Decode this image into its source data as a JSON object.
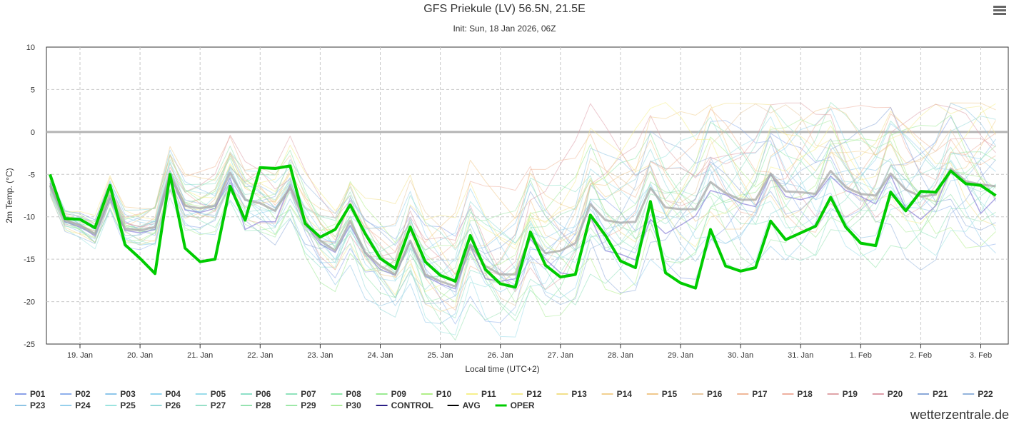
{
  "title": "GFS Priekule (LV) 56.5N, 21.5E",
  "subtitle": "Init: Sun, 18 Jan 2026, 06Z",
  "brand": "wetterzentrale.de",
  "menu_icon": "hamburger-menu-icon",
  "chart_data": {
    "type": "line",
    "title": "GFS Priekule (LV) 56.5N, 21.5E",
    "subtitle": "Init: Sun, 18 Jan 2026, 06Z",
    "xlabel": "Local time (UTC+2)",
    "ylabel": "2m Temp. (°C)",
    "ylim": [
      -25,
      10
    ],
    "yticks": [
      10,
      5,
      0,
      -5,
      -10,
      -15,
      -20,
      -25
    ],
    "xticks": [
      {
        "label": "19. Jan",
        "day": 1
      },
      {
        "label": "20. Jan",
        "day": 2
      },
      {
        "label": "21. Jan",
        "day": 3
      },
      {
        "label": "22. Jan",
        "day": 4
      },
      {
        "label": "23. Jan",
        "day": 5
      },
      {
        "label": "24. Jan",
        "day": 6
      },
      {
        "label": "25. Jan",
        "day": 7
      },
      {
        "label": "26. Jan",
        "day": 8
      },
      {
        "label": "27. Jan",
        "day": 9
      },
      {
        "label": "28. Jan",
        "day": 10
      },
      {
        "label": "29. Jan",
        "day": 11
      },
      {
        "label": "30. Jan",
        "day": 12
      },
      {
        "label": "31. Jan",
        "day": 13
      },
      {
        "label": "1. Feb",
        "day": 14
      },
      {
        "label": "2. Feb",
        "day": 15
      },
      {
        "label": "3. Feb",
        "day": 16
      }
    ],
    "x_start_day": 0.5,
    "step_hours": 6,
    "grid": true,
    "legend_position": "bottom",
    "zero_line": 0,
    "series": [
      {
        "name": "P01",
        "color": "#8aa0e8"
      },
      {
        "name": "P02",
        "color": "#8fb0ec"
      },
      {
        "name": "P03",
        "color": "#8ec6ea"
      },
      {
        "name": "P04",
        "color": "#92d4ee"
      },
      {
        "name": "P05",
        "color": "#9adcea"
      },
      {
        "name": "P06",
        "color": "#8ee0c8"
      },
      {
        "name": "P07",
        "color": "#90e2bc"
      },
      {
        "name": "P08",
        "color": "#8ee6a8"
      },
      {
        "name": "P09",
        "color": "#9aea92"
      },
      {
        "name": "P10",
        "color": "#b0ee88"
      },
      {
        "name": "P11",
        "color": "#f6f08c"
      },
      {
        "name": "P12",
        "color": "#f4ea90"
      },
      {
        "name": "P13",
        "color": "#f2e08a"
      },
      {
        "name": "P14",
        "color": "#f2d090"
      },
      {
        "name": "P15",
        "color": "#f0c88c"
      },
      {
        "name": "P16",
        "color": "#e8c8a0"
      },
      {
        "name": "P17",
        "color": "#f0b898"
      },
      {
        "name": "P18",
        "color": "#eeb0a0"
      },
      {
        "name": "P19",
        "color": "#e0a4a8"
      },
      {
        "name": "P20",
        "color": "#dc9ca8"
      },
      {
        "name": "P21",
        "color": "#8aa8d8"
      },
      {
        "name": "P22",
        "color": "#94b4dc"
      },
      {
        "name": "P23",
        "color": "#8ec4e4"
      },
      {
        "name": "P24",
        "color": "#96d0ec"
      },
      {
        "name": "P25",
        "color": "#9ce4e0"
      },
      {
        "name": "P26",
        "color": "#94d8d8"
      },
      {
        "name": "P27",
        "color": "#98e0c8"
      },
      {
        "name": "P28",
        "color": "#96e2b0"
      },
      {
        "name": "P29",
        "color": "#9ee8a8"
      },
      {
        "name": "P30",
        "color": "#aeec9c"
      },
      {
        "name": "CONTROL",
        "color": "#2b1f86"
      },
      {
        "name": "AVG",
        "color": "#111111",
        "values": [
          -6.3,
          -10.4,
          -11.0,
          -12.0,
          -7.5,
          -11.4,
          -11.6,
          -11.2,
          -5.0,
          -8.7,
          -9.0,
          -8.7,
          -4.8,
          -8.0,
          -8.4,
          -9.3,
          -6.5,
          -10.5,
          -12.8,
          -14.0,
          -10.5,
          -14.2,
          -15.8,
          -16.8,
          -12.8,
          -16.8,
          -17.6,
          -18.2,
          -13.3,
          -15.8,
          -16.8,
          -16.8,
          -12.2,
          -14.3,
          -14.0,
          -13.1,
          -8.5,
          -10.4,
          -10.7,
          -10.6,
          -6.6,
          -8.9,
          -9.1,
          -9.1,
          -5.9,
          -7.2,
          -8.0,
          -8.0,
          -4.9,
          -7.0,
          -7.1,
          -7.3,
          -4.6,
          -6.5,
          -7.3,
          -7.5,
          -4.9,
          -6.8,
          -7.6,
          -7.4,
          -4.3,
          -5.8,
          -6.2,
          -6.4
        ]
      },
      {
        "name": "CONTROL_line",
        "color": "#2b1f86",
        "values": [
          -6.0,
          -10.6,
          -11.2,
          -12.2,
          -7.8,
          -11.6,
          -11.9,
          -11.5,
          -5.2,
          -9.2,
          -9.5,
          -9.0,
          -5.4,
          -11.5,
          -10.6,
          -10.6,
          -6.2,
          -10.9,
          -13.2,
          -14.2,
          -11.0,
          -14.3,
          -16.2,
          -16.9,
          -13.0,
          -17.0,
          -17.9,
          -18.5,
          -13.5,
          -17.3,
          -17.6,
          -17.3,
          -12.6,
          -15.0,
          -16.6,
          -16.9,
          -10.0,
          -14.0,
          -14.4,
          -15.1,
          -10.3,
          -12.0,
          -11.0,
          -9.9,
          -6.9,
          -7.4,
          -8.4,
          -8.8,
          -5.0,
          -7.6,
          -8.0,
          -7.5,
          -5.2,
          -6.9,
          -7.6,
          -8.5,
          -5.1,
          -9.0,
          -10.3,
          -8.7,
          -4.4,
          -6.0,
          -9.6,
          -7.8
        ]
      },
      {
        "name": "OPER",
        "color": "#00cc00",
        "values": [
          -5.0,
          -10.2,
          -10.3,
          -11.3,
          -6.3,
          -13.3,
          -14.9,
          -16.7,
          -5.0,
          -13.7,
          -15.3,
          -15.0,
          -6.4,
          -10.4,
          -4.2,
          -4.3,
          -4.0,
          -10.8,
          -12.4,
          -11.5,
          -8.6,
          -12.0,
          -14.9,
          -16.1,
          -11.2,
          -15.3,
          -16.9,
          -17.6,
          -12.2,
          -16.2,
          -17.9,
          -18.3,
          -11.8,
          -15.7,
          -17.1,
          -16.8,
          -9.8,
          -12.2,
          -15.2,
          -16.0,
          -8.2,
          -16.6,
          -17.8,
          -18.4,
          -11.5,
          -15.8,
          -16.4,
          -16.0,
          -10.5,
          -12.7,
          -11.9,
          -11.1,
          -7.7,
          -11.2,
          -13.1,
          -13.4,
          -7.1,
          -9.3,
          -7.0,
          -7.1,
          -4.6,
          -6.1,
          -6.3,
          -7.5
        ]
      }
    ]
  }
}
